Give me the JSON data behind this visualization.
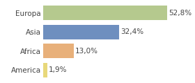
{
  "categories": [
    "Europa",
    "Asia",
    "Africa",
    "America"
  ],
  "values": [
    52.8,
    32.4,
    13.0,
    1.9
  ],
  "bar_colors": [
    "#b5c98e",
    "#6e8fbf",
    "#e8b07a",
    "#e8d87a"
  ],
  "labels": [
    "52,8%",
    "32,4%",
    "13,0%",
    "1,9%"
  ],
  "xlim": [
    0,
    62
  ],
  "background_color": "#ffffff",
  "bar_height": 0.75,
  "label_fontsize": 7.5,
  "tick_fontsize": 7.5,
  "label_color": "#444444",
  "tick_color": "#444444"
}
